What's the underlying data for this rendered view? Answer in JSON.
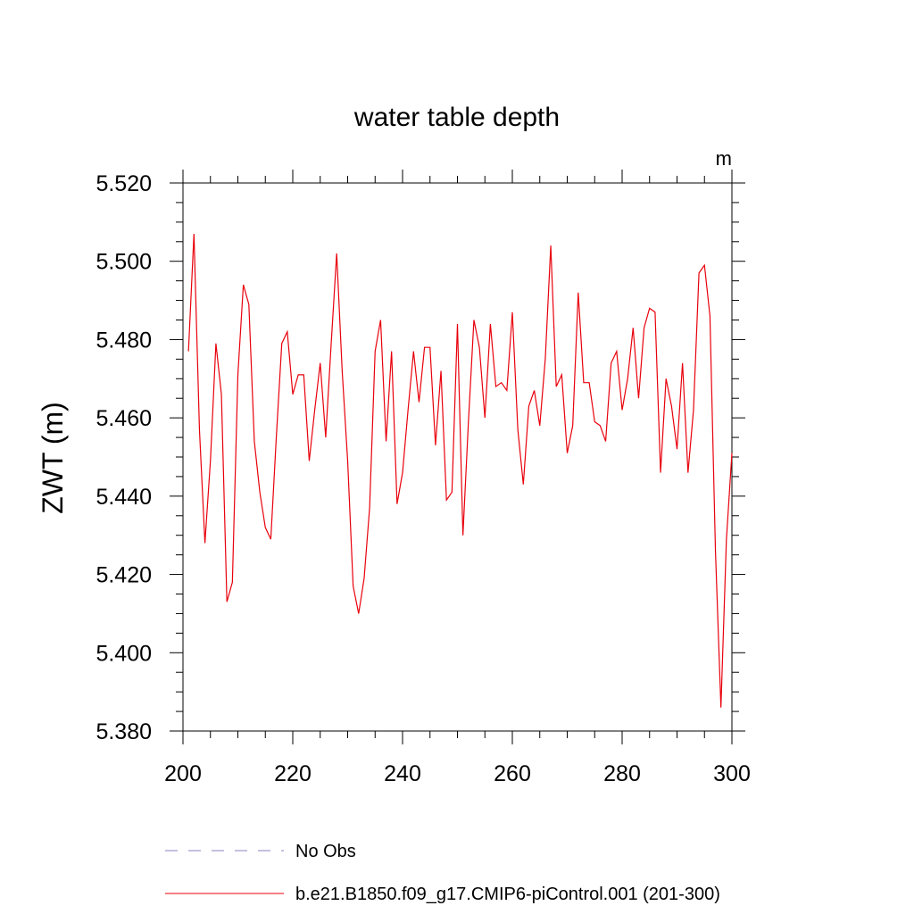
{
  "chart_data": {
    "type": "line",
    "title": "water table depth",
    "units": "m",
    "xlabel": "",
    "ylabel": "ZWT  (m)",
    "xlim": [
      200,
      300
    ],
    "ylim": [
      5.38,
      5.52
    ],
    "xticks": [
      200,
      220,
      240,
      260,
      280,
      300
    ],
    "xtick_labels": [
      "200",
      "220",
      "240",
      "260",
      "280",
      "300"
    ],
    "yticks": [
      5.38,
      5.4,
      5.42,
      5.44,
      5.46,
      5.48,
      5.5,
      5.52
    ],
    "ytick_labels": [
      "5.380",
      "5.400",
      "5.420",
      "5.440",
      "5.460",
      "5.480",
      "5.500",
      "5.520"
    ],
    "grid": false,
    "legend_position": "bottom",
    "series": [
      {
        "name": "No Obs",
        "color": "#8a80c0",
        "style": "dashed",
        "x": [],
        "values": []
      },
      {
        "name": "b.e21.B1850.f09_g17.CMIP6-piControl.001 (201-300)",
        "color": "#e8000b",
        "style": "solid",
        "x": [
          201,
          202,
          203,
          204,
          205,
          206,
          207,
          208,
          209,
          210,
          211,
          212,
          213,
          214,
          215,
          216,
          217,
          218,
          219,
          220,
          221,
          222,
          223,
          224,
          225,
          226,
          227,
          228,
          229,
          230,
          231,
          232,
          233,
          234,
          235,
          236,
          237,
          238,
          239,
          240,
          241,
          242,
          243,
          244,
          245,
          246,
          247,
          248,
          249,
          250,
          251,
          252,
          253,
          254,
          255,
          256,
          257,
          258,
          259,
          260,
          261,
          262,
          263,
          264,
          265,
          266,
          267,
          268,
          269,
          270,
          271,
          272,
          273,
          274,
          275,
          276,
          277,
          278,
          279,
          280,
          281,
          282,
          283,
          284,
          285,
          286,
          287,
          288,
          289,
          290,
          291,
          292,
          293,
          294,
          295,
          296,
          297,
          298,
          299,
          300
        ],
        "values": [
          5.477,
          5.507,
          5.457,
          5.428,
          5.449,
          5.479,
          5.466,
          5.413,
          5.418,
          5.471,
          5.494,
          5.489,
          5.454,
          5.441,
          5.432,
          5.429,
          5.455,
          5.479,
          5.482,
          5.466,
          5.471,
          5.471,
          5.449,
          5.462,
          5.474,
          5.455,
          5.479,
          5.502,
          5.472,
          5.449,
          5.417,
          5.41,
          5.419,
          5.437,
          5.477,
          5.485,
          5.454,
          5.477,
          5.438,
          5.446,
          5.462,
          5.477,
          5.464,
          5.478,
          5.478,
          5.453,
          5.472,
          5.439,
          5.441,
          5.484,
          5.43,
          5.459,
          5.485,
          5.478,
          5.46,
          5.484,
          5.468,
          5.469,
          5.467,
          5.487,
          5.457,
          5.443,
          5.463,
          5.467,
          5.458,
          5.475,
          5.504,
          5.468,
          5.471,
          5.451,
          5.458,
          5.492,
          5.469,
          5.469,
          5.459,
          5.458,
          5.454,
          5.474,
          5.477,
          5.462,
          5.47,
          5.483,
          5.465,
          5.483,
          5.488,
          5.487,
          5.446,
          5.47,
          5.463,
          5.452,
          5.474,
          5.446,
          5.462,
          5.497,
          5.499,
          5.486,
          5.426,
          5.386,
          5.429,
          5.451
        ]
      }
    ]
  }
}
